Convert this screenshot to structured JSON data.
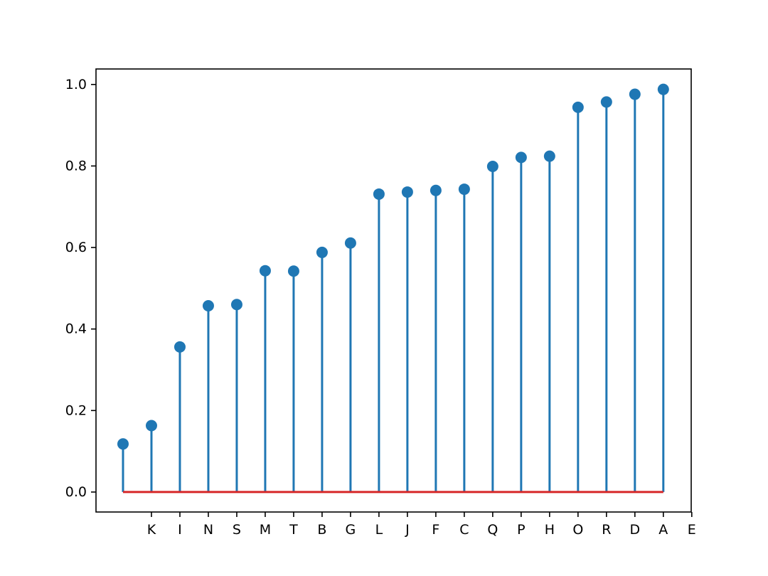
{
  "figure": {
    "background_color": "#ffffff"
  },
  "chart_data": {
    "type": "stem",
    "title": "",
    "xlabel": "",
    "ylabel": "",
    "x_tick_labels": [
      "K",
      "I",
      "N",
      "S",
      "M",
      "T",
      "B",
      "G",
      "L",
      "J",
      "F",
      "C",
      "Q",
      "P",
      "H",
      "O",
      "R",
      "D",
      "A",
      "E"
    ],
    "x_tick_positions": [
      1,
      2,
      3,
      4,
      5,
      6,
      7,
      8,
      9,
      10,
      11,
      12,
      13,
      14,
      15,
      16,
      17,
      18,
      19,
      20
    ],
    "stem_positions": [
      0,
      1,
      2,
      3,
      4,
      5,
      6,
      7,
      8,
      9,
      10,
      11,
      12,
      13,
      14,
      15,
      16,
      17,
      18,
      19
    ],
    "values": [
      0.118,
      0.163,
      0.356,
      0.457,
      0.46,
      0.543,
      0.542,
      0.588,
      0.611,
      0.731,
      0.736,
      0.74,
      0.743,
      0.799,
      0.821,
      0.824,
      0.944,
      0.957,
      0.976,
      0.988
    ],
    "baseline_value": 0.0,
    "y_ticks": [
      0.0,
      0.2,
      0.4,
      0.6,
      0.8,
      1.0
    ],
    "y_tick_labels": [
      "0.0",
      "0.2",
      "0.4",
      "0.6",
      "0.8",
      "1.0"
    ],
    "xlim": [
      -0.95,
      19.98
    ],
    "ylim": [
      -0.049,
      1.038
    ],
    "grid": false,
    "legend": null,
    "layout": {
      "note_stems_vs_ticks": "each stem sits one x-unit left of its tick label; first stem unlabeled, last label has no stem",
      "baseline_spans": "first stem to last stem"
    },
    "colors": {
      "stem": "#1f77b4",
      "marker": "#1f77b4",
      "baseline": "#d62728",
      "axis": "#000000",
      "tick_label": "#000000"
    }
  }
}
